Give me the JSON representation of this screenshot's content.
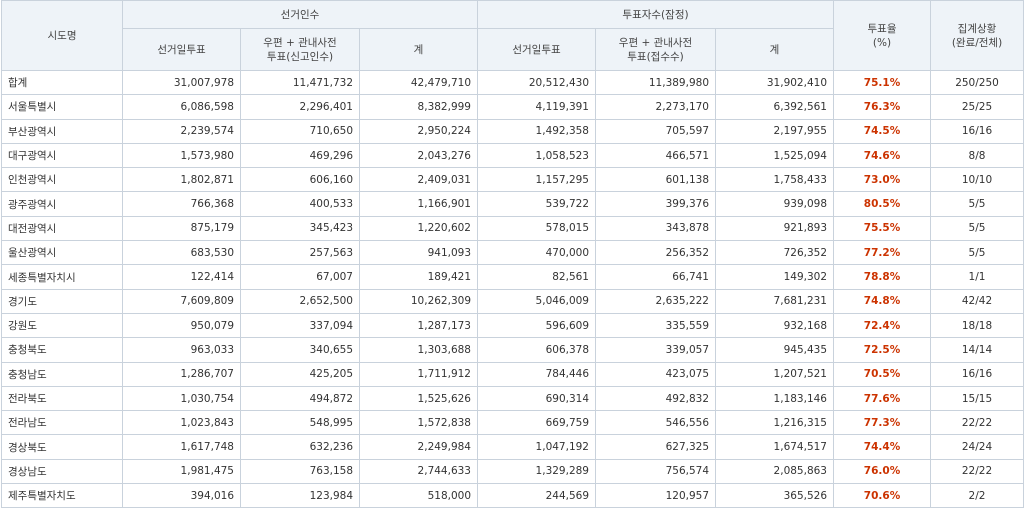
{
  "headers": {
    "region": "시도명",
    "electors": "선거인수",
    "voters": "투표자수(잠정)",
    "rate": "투표율\n(%)",
    "status": "집계상황\n(완료/전체)",
    "sub": [
      "선거일투표",
      "우편 + 관내사전\n투표(신고인수)",
      "계",
      "선거일투표",
      "우편 + 관내사전\n투표(접수수)",
      "계"
    ]
  },
  "rows": [
    [
      "합계",
      "31,007,978",
      "11,471,732",
      "42,479,710",
      "20,512,430",
      "11,389,980",
      "31,902,410",
      "75.1%",
      "250/250"
    ],
    [
      "서울특별시",
      "6,086,598",
      "2,296,401",
      "8,382,999",
      "4,119,391",
      "2,273,170",
      "6,392,561",
      "76.3%",
      "25/25"
    ],
    [
      "부산광역시",
      "2,239,574",
      "710,650",
      "2,950,224",
      "1,492,358",
      "705,597",
      "2,197,955",
      "74.5%",
      "16/16"
    ],
    [
      "대구광역시",
      "1,573,980",
      "469,296",
      "2,043,276",
      "1,058,523",
      "466,571",
      "1,525,094",
      "74.6%",
      "8/8"
    ],
    [
      "인천광역시",
      "1,802,871",
      "606,160",
      "2,409,031",
      "1,157,295",
      "601,138",
      "1,758,433",
      "73.0%",
      "10/10"
    ],
    [
      "광주광역시",
      "766,368",
      "400,533",
      "1,166,901",
      "539,722",
      "399,376",
      "939,098",
      "80.5%",
      "5/5"
    ],
    [
      "대전광역시",
      "875,179",
      "345,423",
      "1,220,602",
      "578,015",
      "343,878",
      "921,893",
      "75.5%",
      "5/5"
    ],
    [
      "울산광역시",
      "683,530",
      "257,563",
      "941,093",
      "470,000",
      "256,352",
      "726,352",
      "77.2%",
      "5/5"
    ],
    [
      "세종특별자치시",
      "122,414",
      "67,007",
      "189,421",
      "82,561",
      "66,741",
      "149,302",
      "78.8%",
      "1/1"
    ],
    [
      "경기도",
      "7,609,809",
      "2,652,500",
      "10,262,309",
      "5,046,009",
      "2,635,222",
      "7,681,231",
      "74.8%",
      "42/42"
    ],
    [
      "강원도",
      "950,079",
      "337,094",
      "1,287,173",
      "596,609",
      "335,559",
      "932,168",
      "72.4%",
      "18/18"
    ],
    [
      "충청북도",
      "963,033",
      "340,655",
      "1,303,688",
      "606,378",
      "339,057",
      "945,435",
      "72.5%",
      "14/14"
    ],
    [
      "충청남도",
      "1,286,707",
      "425,205",
      "1,711,912",
      "784,446",
      "423,075",
      "1,207,521",
      "70.5%",
      "16/16"
    ],
    [
      "전라북도",
      "1,030,754",
      "494,872",
      "1,525,626",
      "690,314",
      "492,832",
      "1,183,146",
      "77.6%",
      "15/15"
    ],
    [
      "전라남도",
      "1,023,843",
      "548,995",
      "1,572,838",
      "669,759",
      "546,556",
      "1,216,315",
      "77.3%",
      "22/22"
    ],
    [
      "경상북도",
      "1,617,748",
      "632,236",
      "2,249,984",
      "1,047,192",
      "627,325",
      "1,674,517",
      "74.4%",
      "24/24"
    ],
    [
      "경상남도",
      "1,981,475",
      "763,158",
      "2,744,633",
      "1,329,289",
      "756,574",
      "2,085,863",
      "76.0%",
      "22/22"
    ],
    [
      "제주특별자치도",
      "394,016",
      "123,984",
      "518,000",
      "244,569",
      "120,957",
      "365,526",
      "70.6%",
      "2/2"
    ]
  ]
}
